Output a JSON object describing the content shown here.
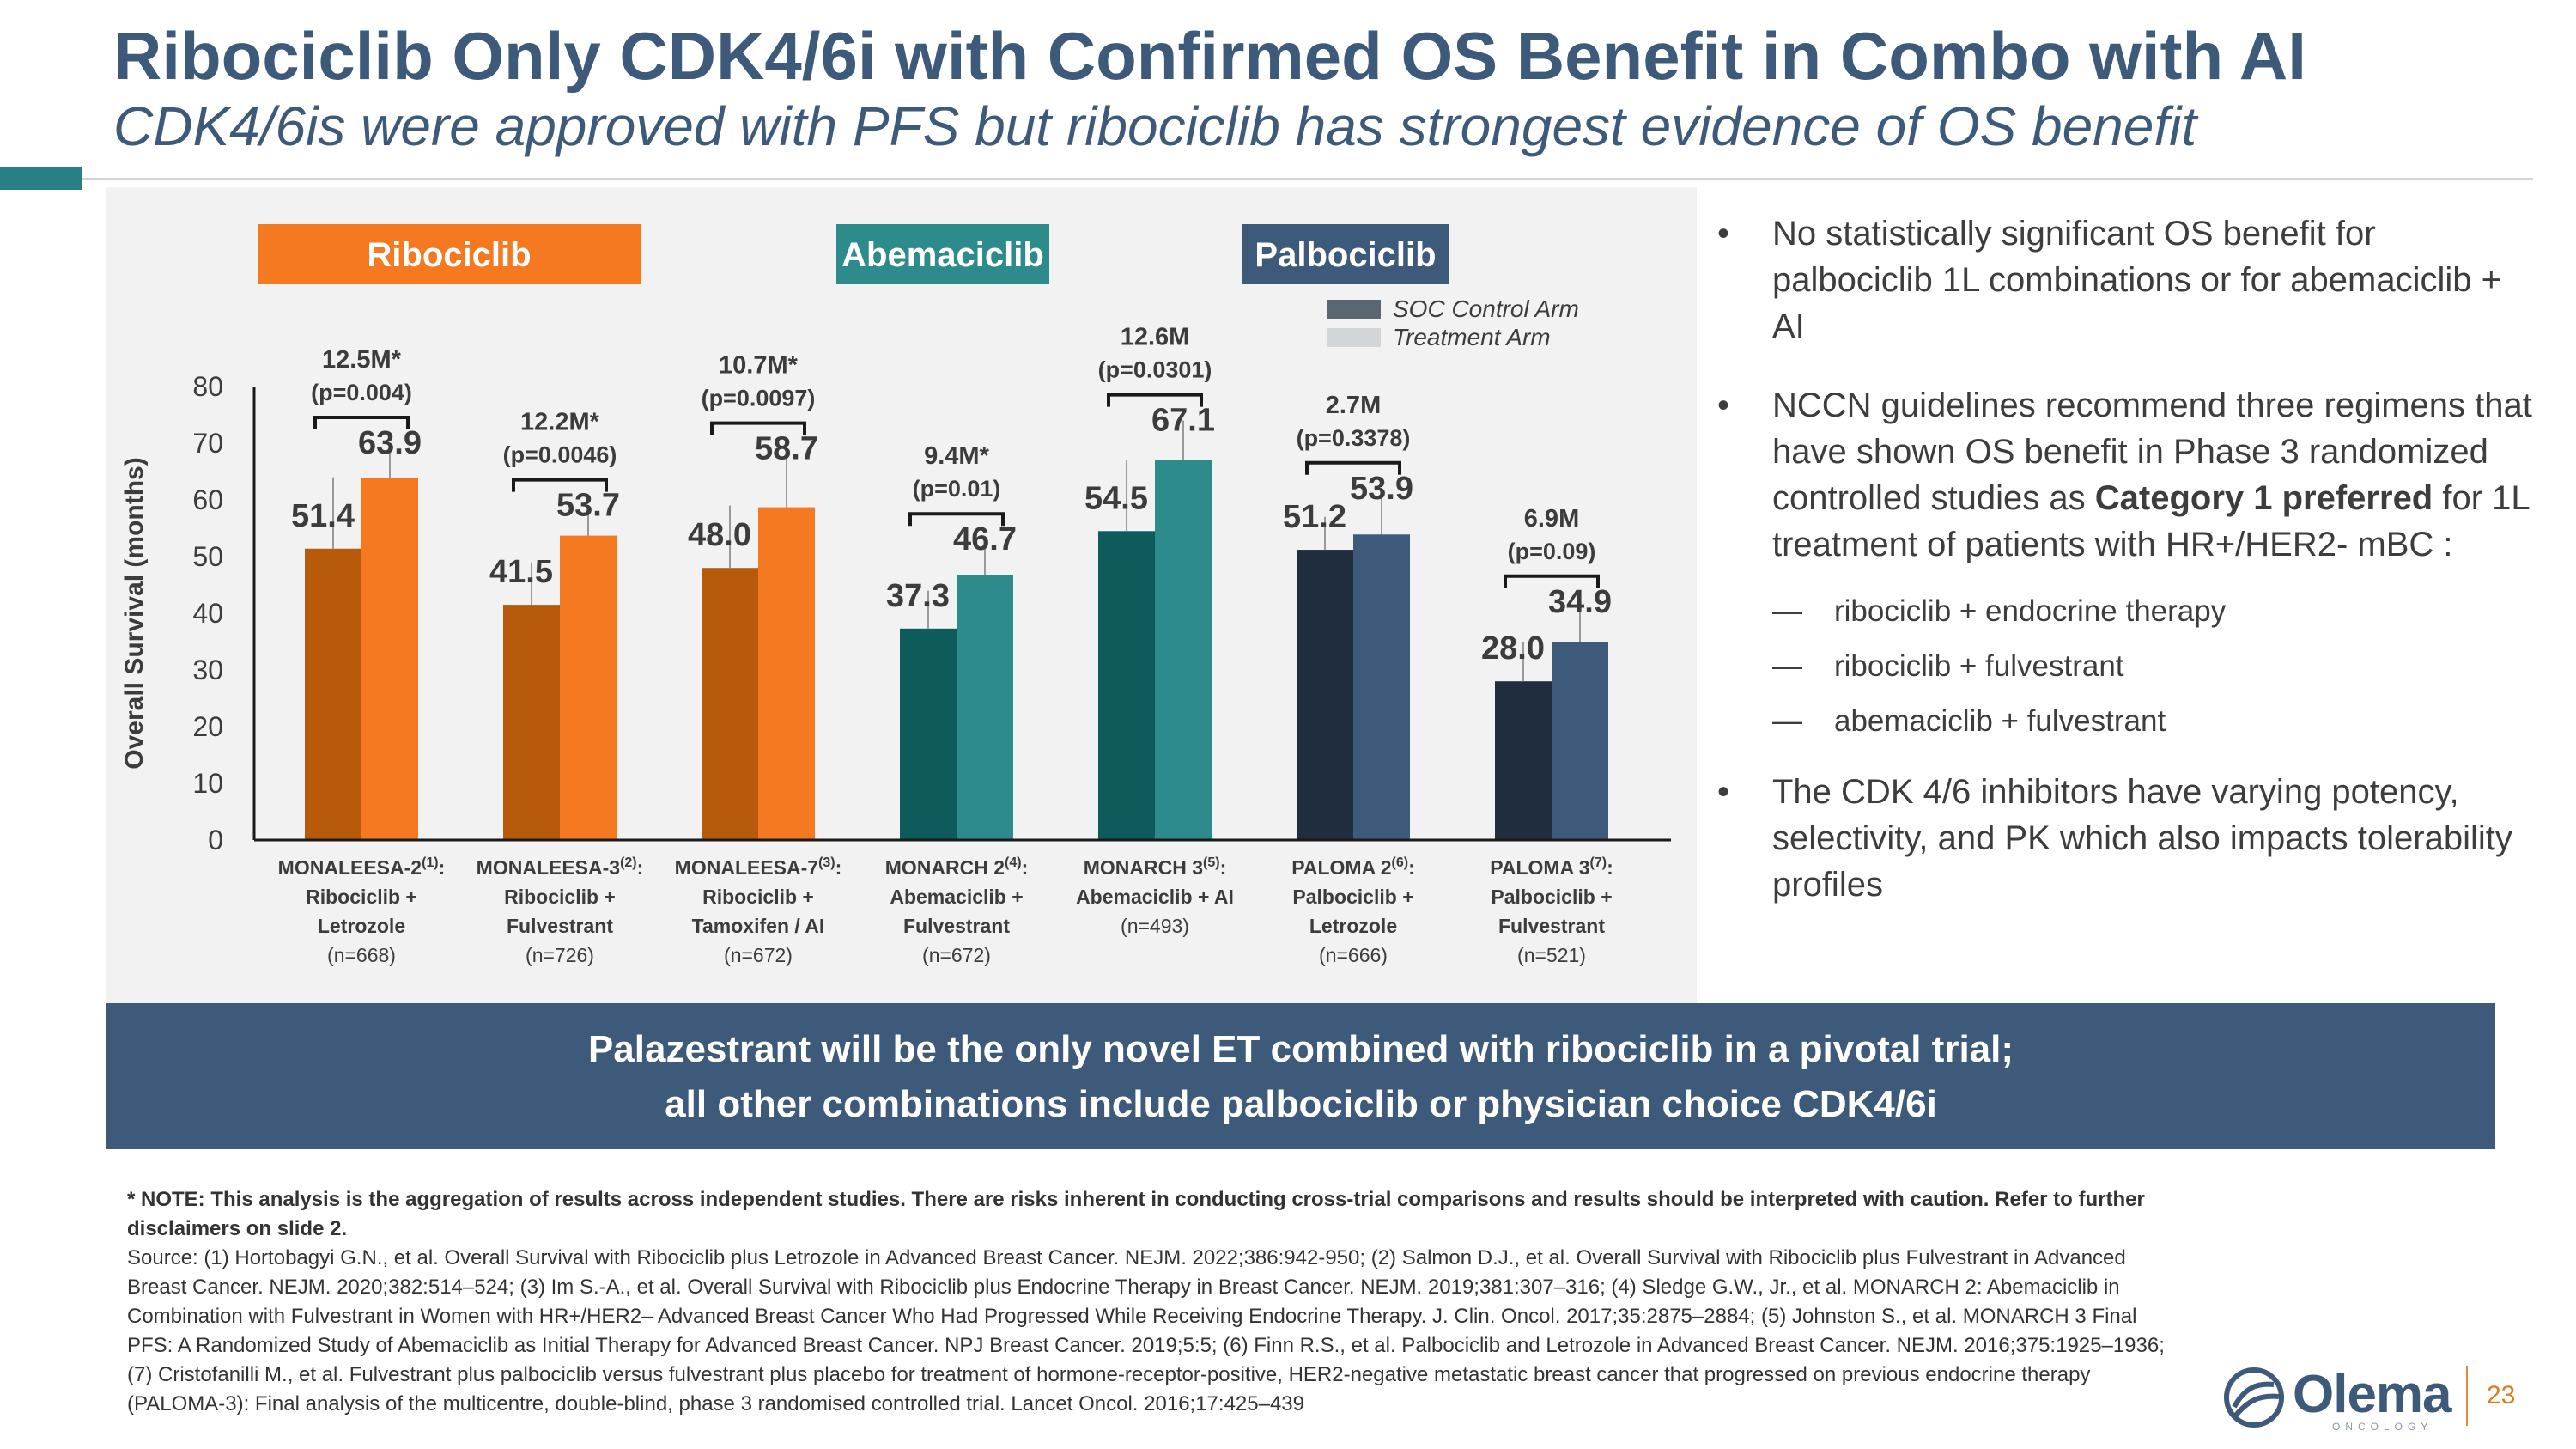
{
  "header": {
    "title": "Ribociclib Only CDK4/6i with Confirmed OS Benefit in Combo with AI",
    "subtitle": "CDK4/6is were approved with PFS but ribociclib has strongest evidence of OS benefit"
  },
  "colors": {
    "ribociclib": "#f47920",
    "ribociclib_dark": "#b85a0b",
    "abemaciclib": "#2e8b8b",
    "abemaciclib_dark": "#0e5b5b",
    "palbociclib": "#3d5a7a",
    "palbociclib_dark": "#1f2d3f",
    "soc": "#5b6770",
    "treatment": "#d3d6d8",
    "banner": "#3d5a7a"
  },
  "chart_data": {
    "type": "bar",
    "ylabel": "Overall Survival (months)",
    "ylim": [
      0,
      80
    ],
    "yticks": [
      "0",
      "10",
      "20",
      "30",
      "40",
      "50",
      "60",
      "70",
      "80"
    ],
    "groups": [
      {
        "label": "Ribociclib",
        "trials": [
          0,
          1,
          2
        ]
      },
      {
        "label": "Abemaciclib",
        "trials": [
          3,
          4
        ]
      },
      {
        "label": "Palbociclib",
        "trials": [
          5,
          6
        ]
      }
    ],
    "legend": [
      "SOC Control Arm",
      "Treatment Arm"
    ],
    "series": [
      {
        "name": "SOC Control Arm",
        "values": [
          51.4,
          41.5,
          48.0,
          37.3,
          54.5,
          51.2,
          28.0
        ]
      },
      {
        "name": "Treatment Arm",
        "values": [
          63.9,
          53.7,
          58.7,
          46.7,
          67.1,
          53.9,
          34.9
        ]
      }
    ],
    "trials": [
      {
        "name": "MONALEESA-2",
        "ref": "(1)",
        "line1": "Ribociclib +",
        "line2": "Letrozole",
        "n": "(n=668)",
        "soc_label": "51.4",
        "trt_label": "63.9",
        "delta": "12.5M*",
        "p": "(p=0.004)",
        "soc_err_top": 64,
        "trt_err_top": 70
      },
      {
        "name": "MONALEESA-3",
        "ref": "(2)",
        "line1": "Ribociclib +",
        "line2": "Fulvestrant",
        "n": "(n=726)",
        "soc_label": "41.5",
        "trt_label": "53.7",
        "delta": "12.2M*",
        "p": "(p=0.0046)",
        "soc_err_top": 49,
        "trt_err_top": 59
      },
      {
        "name": "MONALEESA-7",
        "ref": "(3)",
        "line1": "Ribociclib +",
        "line2": "Tamoxifen / AI",
        "n": "(n=672)",
        "soc_label": "48.0",
        "trt_label": "58.7",
        "delta": "10.7M*",
        "p": "(p=0.0097)",
        "soc_err_top": 59,
        "trt_err_top": 69
      },
      {
        "name": "MONARCH 2",
        "ref": "(4)",
        "line1": "Abemaciclib +",
        "line2": "Fulvestrant",
        "n": "(n=672)",
        "soc_label": "37.3",
        "trt_label": "46.7",
        "delta": "9.4M*",
        "p": "(p=0.01)",
        "soc_err_top": 44,
        "trt_err_top": 53
      },
      {
        "name": "MONARCH 3",
        "ref": "(5)",
        "line1": "Abemaciclib + AI",
        "line2": "",
        "n": "(n=493)",
        "soc_label": "54.5",
        "trt_label": "67.1",
        "delta": "12.6M",
        "p": "(p=0.0301)",
        "soc_err_top": 67,
        "trt_err_top": 74
      },
      {
        "name": "PALOMA 2",
        "ref": "(6)",
        "line1": "Palbociclib +",
        "line2": "Letrozole",
        "n": "(n=666)",
        "soc_label": "51.2",
        "trt_label": "53.9",
        "delta": "2.7M",
        "p": "(p=0.3378)",
        "soc_err_top": 57,
        "trt_err_top": 62
      },
      {
        "name": "PALOMA 3",
        "ref": "(7)",
        "line1": "Palbociclib +",
        "line2": "Fulvestrant",
        "n": "(n=521)",
        "soc_label": "28.0",
        "trt_label": "34.9",
        "delta": "6.9M",
        "p": "(p=0.09)",
        "soc_err_top": 35,
        "trt_err_top": 42
      }
    ]
  },
  "bullets": {
    "b1": "No statistically significant OS benefit for palbociclib 1L combinations or for abemaciclib + AI",
    "b2_pre": "NCCN guidelines recommend three regimens that have shown OS benefit in Phase 3 randomized controlled studies as ",
    "b2_bold": "Category 1 preferred",
    "b2_post": " for 1L treatment of patients with HR+/HER2- mBC :",
    "subs": [
      "ribociclib + endocrine therapy",
      "ribociclib + fulvestrant",
      "abemaciclib + fulvestrant"
    ],
    "b3": "The CDK 4/6 inhibitors have varying potency, selectivity, and PK which also impacts tolerability profiles"
  },
  "banner": {
    "line1": "Palazestrant will be the only novel ET combined with ribociclib in a pivotal trial;",
    "line2": "all other combinations include palbociclib or physician choice CDK4/6i"
  },
  "footnote": {
    "note": "* NOTE: This analysis is the aggregation of results across independent studies.  There are risks inherent in conducting cross-trial comparisons and results should be interpreted with caution. Refer to further disclaimers on slide 2.",
    "source": "Source: (1) Hortobagyi G.N., et al. Overall Survival with Ribociclib plus Letrozole in Advanced Breast Cancer. NEJM. 2022;386:942-950; (2) Salmon D.J., et al. Overall Survival with Ribociclib plus Fulvestrant in Advanced Breast Cancer. NEJM. 2020;382:514–524; (3) Im S.-A., et al. Overall Survival with Ribociclib plus Endocrine Therapy in Breast Cancer. NEJM. 2019;381:307–316; (4) Sledge G.W., Jr., et al. MONARCH 2: Abemaciclib in Combination with Fulvestrant in Women with HR+/HER2– Advanced Breast Cancer Who Had Progressed While Receiving Endocrine Therapy. J. Clin. Oncol. 2017;35:2875–2884; (5) Johnston S., et al. MONARCH 3 Final PFS: A Randomized Study of Abemaciclib as Initial Therapy for Advanced Breast Cancer. NPJ Breast Cancer. 2019;5:5; (6) Finn R.S., et al. Palbociclib and Letrozole in Advanced Breast Cancer. NEJM. 2016;375:1925–1936; (7) Cristofanilli M., et al. Fulvestrant plus palbociclib versus fulvestrant plus placebo for treatment of hormone-receptor-positive, HER2-negative metastatic breast cancer that progressed on previous endocrine therapy (PALOMA-3): Final analysis of the multicentre, double-blind, phase 3 randomised controlled trial. Lancet Oncol. 2016;17:425–439"
  },
  "logo": {
    "name": "Olema",
    "tagline": "ONCOLOGY"
  },
  "page_number": "23"
}
